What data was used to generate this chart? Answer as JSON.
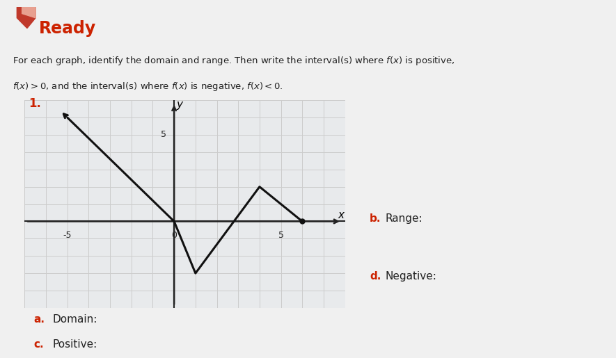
{
  "title": "Ready",
  "graph_points": [
    [
      -5,
      6
    ],
    [
      0,
      0
    ],
    [
      1,
      -3
    ],
    [
      4,
      2
    ],
    [
      6,
      0
    ]
  ],
  "graph_label": "1.",
  "xlabel": "x",
  "ylabel": "y",
  "xlim": [
    -7,
    8
  ],
  "ylim": [
    -5,
    7
  ],
  "bg_color": "#f0f0f0",
  "grid_color": "#cccccc",
  "line_color": "#111111",
  "axis_line_color": "#222222",
  "title_color": "#cc2200",
  "subtitle_line1": "For each graph, identify the domain and range. Then write the interval(s) where $f(x)$ is positive,",
  "subtitle_line2": "$f(x) > 0$, and the interval(s) where $f(x)$ is negative, $f(x) < 0$.",
  "label_a": "a.",
  "label_b": "b.",
  "label_c": "c.",
  "label_d": "d.",
  "text_a": "Domain:",
  "text_b": "Range:",
  "text_c": "Positive:",
  "text_d": "Negative:",
  "logo_color1": "#c0392b",
  "logo_color2": "#e8a090"
}
